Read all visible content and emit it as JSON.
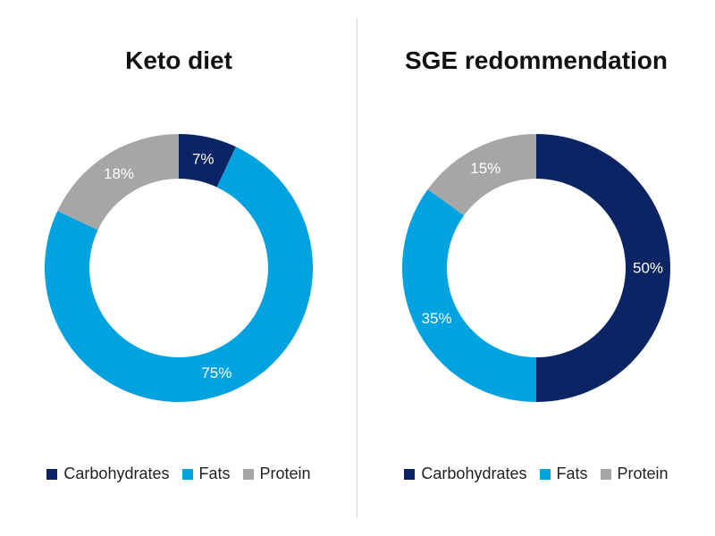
{
  "colors": {
    "Carbohydrates": "#0b2463",
    "Fats": "#00a3e0",
    "Protein": "#a6a6a6"
  },
  "chart_data": [
    {
      "type": "pie",
      "title": "Keto diet",
      "categories": [
        "Carbohydrates",
        "Fats",
        "Protein"
      ],
      "values": [
        7,
        75,
        18
      ],
      "labels": [
        "7%",
        "75%",
        "18%"
      ],
      "legend": [
        "Carbohydrates",
        "Fats",
        "Protein"
      ]
    },
    {
      "type": "pie",
      "title": "SGE redommendation",
      "categories": [
        "Carbohydrates",
        "Fats",
        "Protein"
      ],
      "values": [
        50,
        35,
        15
      ],
      "labels": [
        "50%",
        "35%",
        "15%"
      ],
      "legend": [
        "Carbohydrates",
        "Fats",
        "Protein"
      ]
    }
  ]
}
